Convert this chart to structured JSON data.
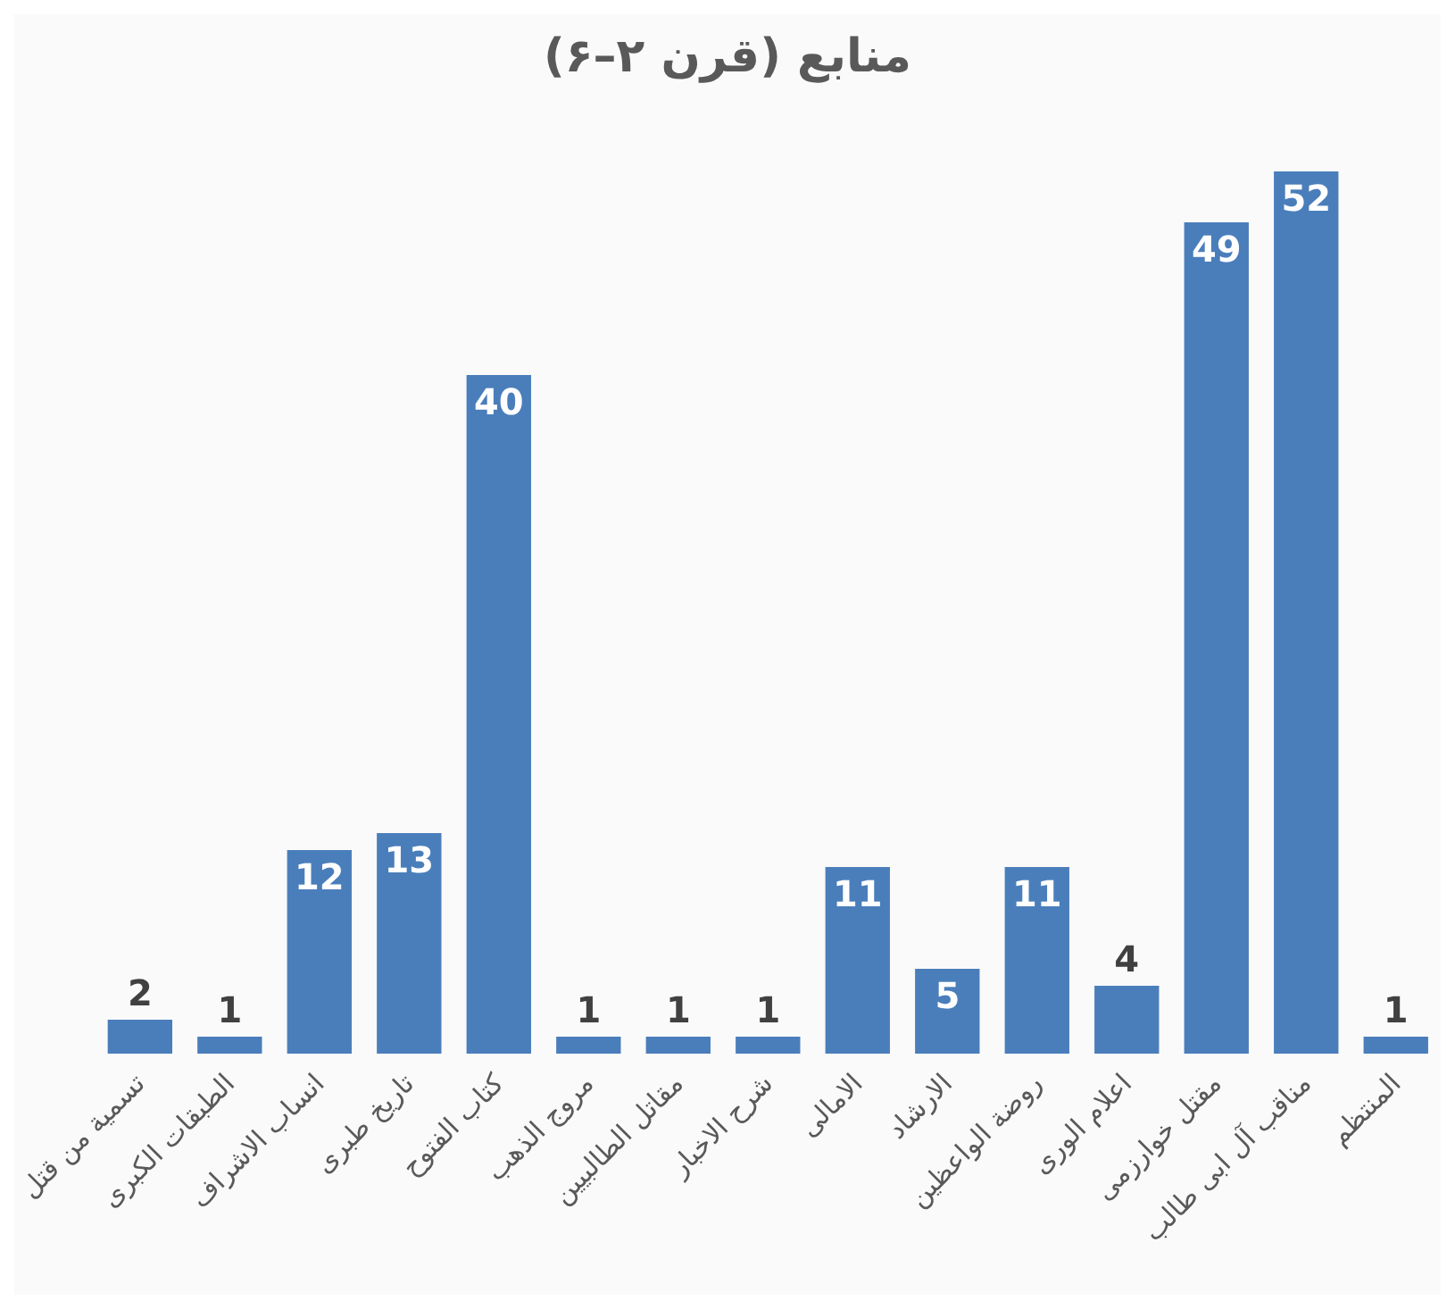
{
  "chart_data": {
    "type": "bar",
    "title": "منابع (قرن ۲–۶)",
    "categories": [
      "تسمیة من قتل",
      "الطبقات الکبری",
      "انساب الاشراف",
      "تاریخ طبری",
      "کتاب الفتوح",
      "مروج الذهب",
      "مقاتل الطالبیین",
      "شرح الاخبار",
      "الامالی",
      "الارشاد",
      "روضة الواعظین",
      "اعلام الوری",
      "مقتل خوارزمی",
      "مناقب آل ابی طالب",
      "المنتظم"
    ],
    "values": [
      2,
      1,
      12,
      13,
      40,
      1,
      1,
      1,
      11,
      5,
      11,
      4,
      49,
      52,
      1
    ],
    "color": "#4a7ebb",
    "data_labels": true
  }
}
